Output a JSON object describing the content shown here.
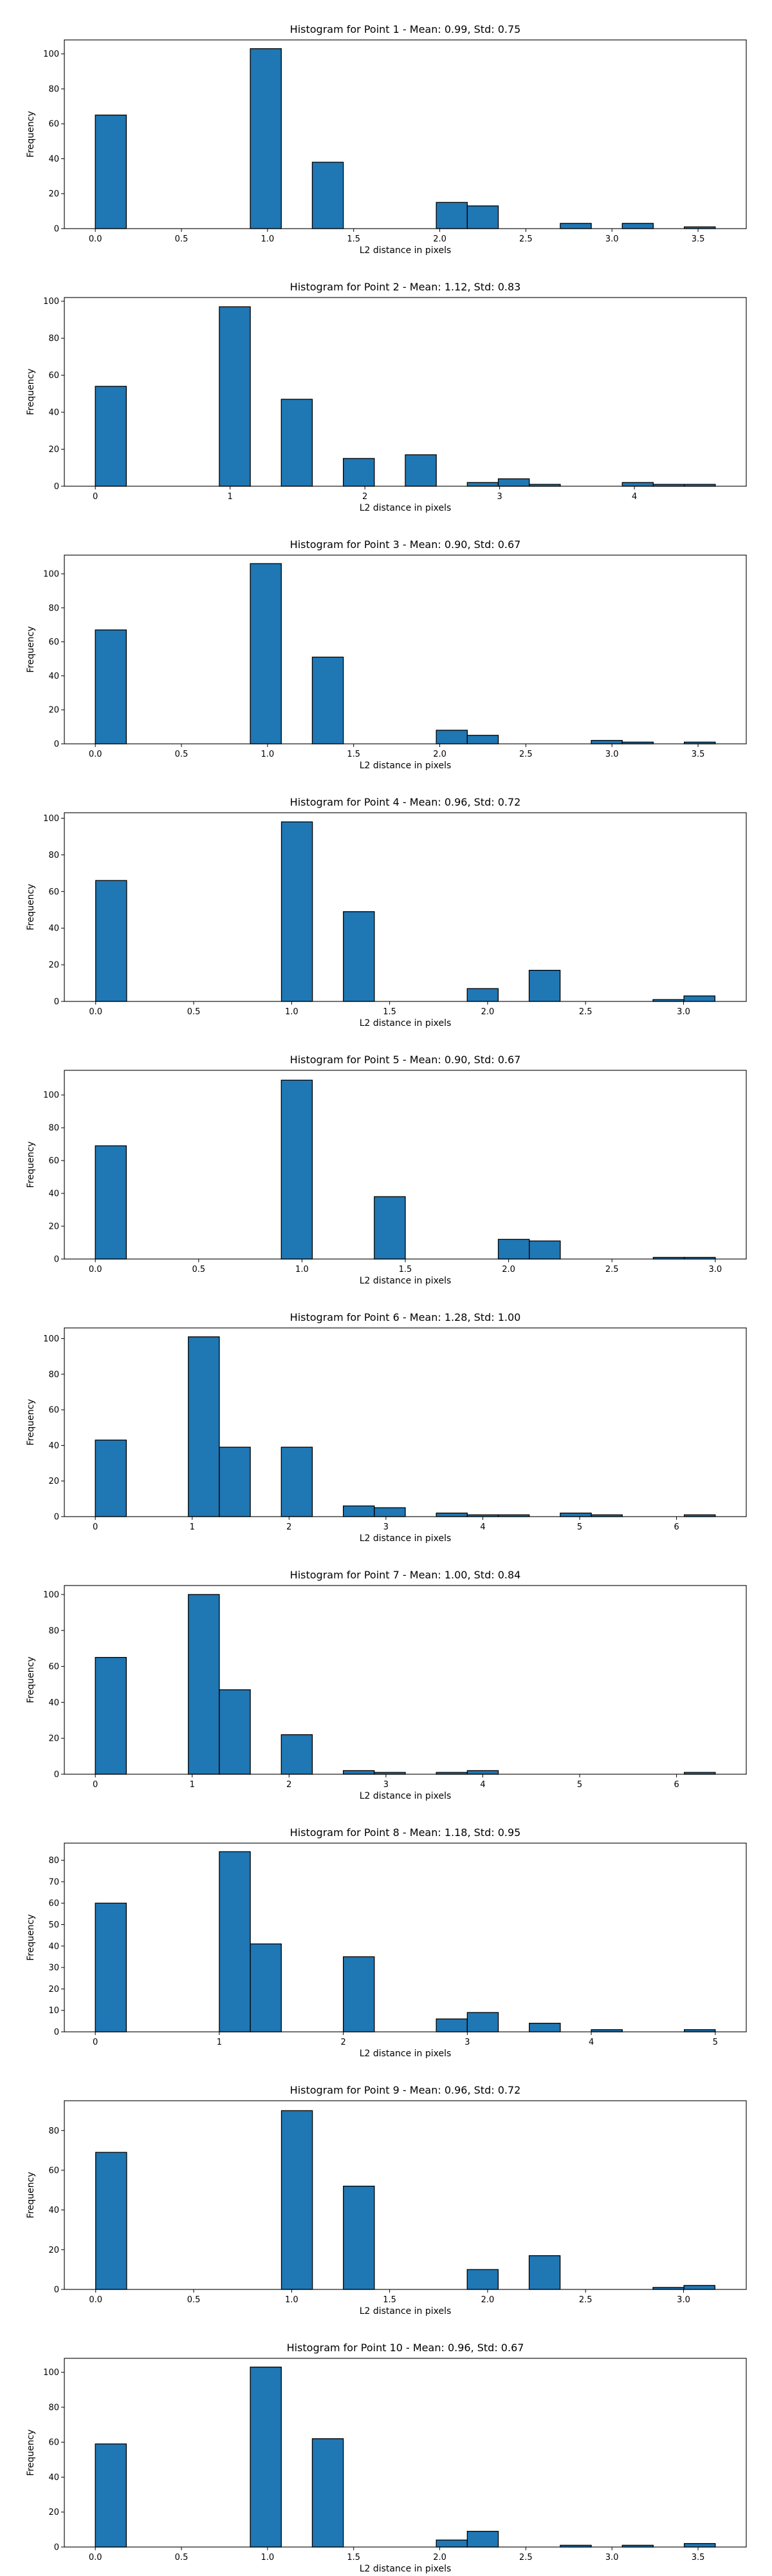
{
  "style": {
    "bar_color": "#1f77b4",
    "edge_color": "#000000",
    "axes_color": "#000000"
  },
  "chart_data": [
    {
      "type": "bar",
      "title": "Histogram for Point 1 - Mean: 0.99, Std: 0.75",
      "xlabel": "L2 distance in pixels",
      "ylabel": "Frequency",
      "xlim": [
        -0.18,
        3.78
      ],
      "ylim": [
        0,
        108
      ],
      "xticks": [
        0.0,
        0.5,
        1.0,
        1.5,
        2.0,
        2.5,
        3.0,
        3.5
      ],
      "xtick_labels": [
        "0.0",
        "0.5",
        "1.0",
        "1.5",
        "2.0",
        "2.5",
        "3.0",
        "3.5"
      ],
      "yticks": [
        0,
        20,
        40,
        60,
        80,
        100
      ],
      "ytick_labels": [
        "0",
        "20",
        "40",
        "60",
        "80",
        "100"
      ],
      "bin_edges": [
        0.0,
        0.18,
        0.36,
        0.54,
        0.72,
        0.9,
        1.08,
        1.26,
        1.44,
        1.62,
        1.8,
        1.98,
        2.16,
        2.34,
        2.52,
        2.7,
        2.88,
        3.06,
        3.24,
        3.42,
        3.6
      ],
      "values": [
        65,
        0,
        0,
        0,
        0,
        103,
        0,
        38,
        0,
        0,
        0,
        15,
        13,
        0,
        0,
        3,
        0,
        3,
        0,
        1
      ]
    },
    {
      "type": "bar",
      "title": "Histogram for Point 2 - Mean: 1.12, Std: 0.83",
      "xlabel": "L2 distance in pixels",
      "ylabel": "Frequency",
      "xlim": [
        -0.23,
        4.83
      ],
      "ylim": [
        0,
        102
      ],
      "xticks": [
        0,
        1,
        2,
        3,
        4
      ],
      "xtick_labels": [
        "0",
        "1",
        "2",
        "3",
        "4"
      ],
      "yticks": [
        0,
        20,
        40,
        60,
        80,
        100
      ],
      "ytick_labels": [
        "0",
        "20",
        "40",
        "60",
        "80",
        "100"
      ],
      "bin_edges": [
        0.0,
        0.23,
        0.46,
        0.69,
        0.92,
        1.15,
        1.38,
        1.61,
        1.84,
        2.07,
        2.3,
        2.53,
        2.76,
        2.99,
        3.22,
        3.45,
        3.68,
        3.91,
        4.14,
        4.37,
        4.6
      ],
      "values": [
        54,
        0,
        0,
        0,
        97,
        0,
        47,
        0,
        15,
        0,
        17,
        0,
        2,
        4,
        1,
        0,
        0,
        2,
        1,
        1
      ]
    },
    {
      "type": "bar",
      "title": "Histogram for Point 3 - Mean: 0.90, Std: 0.67",
      "xlabel": "L2 distance in pixels",
      "ylabel": "Frequency",
      "xlim": [
        -0.18,
        3.78
      ],
      "ylim": [
        0,
        111
      ],
      "xticks": [
        0.0,
        0.5,
        1.0,
        1.5,
        2.0,
        2.5,
        3.0,
        3.5
      ],
      "xtick_labels": [
        "0.0",
        "0.5",
        "1.0",
        "1.5",
        "2.0",
        "2.5",
        "3.0",
        "3.5"
      ],
      "yticks": [
        0,
        20,
        40,
        60,
        80,
        100
      ],
      "ytick_labels": [
        "0",
        "20",
        "40",
        "60",
        "80",
        "100"
      ],
      "bin_edges": [
        0.0,
        0.18,
        0.36,
        0.54,
        0.72,
        0.9,
        1.08,
        1.26,
        1.44,
        1.62,
        1.8,
        1.98,
        2.16,
        2.34,
        2.52,
        2.7,
        2.88,
        3.06,
        3.24,
        3.42,
        3.6
      ],
      "values": [
        67,
        0,
        0,
        0,
        0,
        106,
        0,
        51,
        0,
        0,
        0,
        8,
        5,
        0,
        0,
        0,
        2,
        1,
        0,
        1
      ]
    },
    {
      "type": "bar",
      "title": "Histogram for Point 4 - Mean: 0.96, Std: 0.72",
      "xlabel": "L2 distance in pixels",
      "ylabel": "Frequency",
      "xlim": [
        -0.16,
        3.32
      ],
      "ylim": [
        0,
        103
      ],
      "xticks": [
        0.0,
        0.5,
        1.0,
        1.5,
        2.0,
        2.5,
        3.0
      ],
      "xtick_labels": [
        "0.0",
        "0.5",
        "1.0",
        "1.5",
        "2.0",
        "2.5",
        "3.0"
      ],
      "yticks": [
        0,
        20,
        40,
        60,
        80,
        100
      ],
      "ytick_labels": [
        "0",
        "20",
        "40",
        "60",
        "80",
        "100"
      ],
      "bin_edges": [
        0.0,
        0.158,
        0.316,
        0.474,
        0.632,
        0.79,
        0.948,
        1.106,
        1.264,
        1.422,
        1.58,
        1.738,
        1.896,
        2.054,
        2.212,
        2.37,
        2.528,
        2.686,
        2.844,
        3.002,
        3.16
      ],
      "values": [
        66,
        0,
        0,
        0,
        0,
        0,
        98,
        0,
        49,
        0,
        0,
        0,
        7,
        0,
        17,
        0,
        0,
        0,
        1,
        3
      ]
    },
    {
      "type": "bar",
      "title": "Histogram for Point 5 - Mean: 0.90, Std: 0.67",
      "xlabel": "L2 distance in pixels",
      "ylabel": "Frequency",
      "xlim": [
        -0.15,
        3.15
      ],
      "ylim": [
        0,
        115
      ],
      "xticks": [
        0.0,
        0.5,
        1.0,
        1.5,
        2.0,
        2.5,
        3.0
      ],
      "xtick_labels": [
        "0.0",
        "0.5",
        "1.0",
        "1.5",
        "2.0",
        "2.5",
        "3.0"
      ],
      "yticks": [
        0,
        20,
        40,
        60,
        80,
        100
      ],
      "ytick_labels": [
        "0",
        "20",
        "40",
        "60",
        "80",
        "100"
      ],
      "bin_edges": [
        0.0,
        0.15,
        0.3,
        0.45,
        0.6,
        0.75,
        0.9,
        1.05,
        1.2,
        1.35,
        1.5,
        1.65,
        1.8,
        1.95,
        2.1,
        2.25,
        2.4,
        2.55,
        2.7,
        2.85,
        3.0
      ],
      "values": [
        69,
        0,
        0,
        0,
        0,
        0,
        109,
        0,
        0,
        38,
        0,
        0,
        0,
        12,
        11,
        0,
        0,
        0,
        1,
        1
      ]
    },
    {
      "type": "bar",
      "title": "Histogram for Point 6 - Mean: 1.28, Std: 1.00",
      "xlabel": "L2 distance in pixels",
      "ylabel": "Frequency",
      "xlim": [
        -0.32,
        6.72
      ],
      "ylim": [
        0,
        106
      ],
      "xticks": [
        0,
        1,
        2,
        3,
        4,
        5,
        6
      ],
      "xtick_labels": [
        "0",
        "1",
        "2",
        "3",
        "4",
        "5",
        "6"
      ],
      "yticks": [
        0,
        20,
        40,
        60,
        80,
        100
      ],
      "ytick_labels": [
        "0",
        "20",
        "40",
        "60",
        "80",
        "100"
      ],
      "bin_edges": [
        0.0,
        0.32,
        0.64,
        0.96,
        1.28,
        1.6,
        1.92,
        2.24,
        2.56,
        2.88,
        3.2,
        3.52,
        3.84,
        4.16,
        4.48,
        4.8,
        5.12,
        5.44,
        5.76,
        6.08,
        6.4
      ],
      "values": [
        43,
        0,
        0,
        101,
        39,
        0,
        39,
        0,
        6,
        5,
        0,
        2,
        1,
        1,
        0,
        2,
        1,
        0,
        0,
        1
      ]
    },
    {
      "type": "bar",
      "title": "Histogram for Point 7 - Mean: 1.00, Std: 0.84",
      "xlabel": "L2 distance in pixels",
      "ylabel": "Frequency",
      "xlim": [
        -0.32,
        6.72
      ],
      "ylim": [
        0,
        105
      ],
      "xticks": [
        0,
        1,
        2,
        3,
        4,
        5,
        6
      ],
      "xtick_labels": [
        "0",
        "1",
        "2",
        "3",
        "4",
        "5",
        "6"
      ],
      "yticks": [
        0,
        20,
        40,
        60,
        80,
        100
      ],
      "ytick_labels": [
        "0",
        "20",
        "40",
        "60",
        "80",
        "100"
      ],
      "bin_edges": [
        0.0,
        0.32,
        0.64,
        0.96,
        1.28,
        1.6,
        1.92,
        2.24,
        2.56,
        2.88,
        3.2,
        3.52,
        3.84,
        4.16,
        4.48,
        4.8,
        5.12,
        5.44,
        5.76,
        6.08,
        6.4
      ],
      "values": [
        65,
        0,
        0,
        100,
        47,
        0,
        22,
        0,
        2,
        1,
        0,
        1,
        2,
        0,
        0,
        0,
        0,
        0,
        0,
        1
      ]
    },
    {
      "type": "bar",
      "title": "Histogram for Point 8 - Mean: 1.18, Std: 0.95",
      "xlabel": "L2 distance in pixels",
      "ylabel": "Frequency",
      "xlim": [
        -0.25,
        5.25
      ],
      "ylim": [
        0,
        88
      ],
      "xticks": [
        0,
        1,
        2,
        3,
        4,
        5
      ],
      "xtick_labels": [
        "0",
        "1",
        "2",
        "3",
        "4",
        "5"
      ],
      "yticks": [
        0,
        10,
        20,
        30,
        40,
        50,
        60,
        70,
        80
      ],
      "ytick_labels": [
        "0",
        "10",
        "20",
        "30",
        "40",
        "50",
        "60",
        "70",
        "80"
      ],
      "bin_edges": [
        0.0,
        0.25,
        0.5,
        0.75,
        1.0,
        1.25,
        1.5,
        1.75,
        2.0,
        2.25,
        2.5,
        2.75,
        3.0,
        3.25,
        3.5,
        3.75,
        4.0,
        4.25,
        4.5,
        4.75,
        5.0
      ],
      "values": [
        60,
        0,
        0,
        0,
        84,
        41,
        0,
        0,
        35,
        0,
        0,
        6,
        9,
        0,
        4,
        0,
        1,
        0,
        0,
        1
      ]
    },
    {
      "type": "bar",
      "title": "Histogram for Point 9 - Mean: 0.96, Std: 0.72",
      "xlabel": "L2 distance in pixels",
      "ylabel": "Frequency",
      "xlim": [
        -0.16,
        3.32
      ],
      "ylim": [
        0,
        95
      ],
      "xticks": [
        0.0,
        0.5,
        1.0,
        1.5,
        2.0,
        2.5,
        3.0
      ],
      "xtick_labels": [
        "0.0",
        "0.5",
        "1.0",
        "1.5",
        "2.0",
        "2.5",
        "3.0"
      ],
      "yticks": [
        0,
        20,
        40,
        60,
        80
      ],
      "ytick_labels": [
        "0",
        "20",
        "40",
        "60",
        "80"
      ],
      "bin_edges": [
        0.0,
        0.158,
        0.316,
        0.474,
        0.632,
        0.79,
        0.948,
        1.106,
        1.264,
        1.422,
        1.58,
        1.738,
        1.896,
        2.054,
        2.212,
        2.37,
        2.528,
        2.686,
        2.844,
        3.002,
        3.16
      ],
      "values": [
        69,
        0,
        0,
        0,
        0,
        0,
        90,
        0,
        52,
        0,
        0,
        0,
        10,
        0,
        17,
        0,
        0,
        0,
        1,
        2
      ]
    },
    {
      "type": "bar",
      "title": "Histogram for Point 10 - Mean: 0.96, Std: 0.67",
      "xlabel": "L2 distance in pixels",
      "ylabel": "Frequency",
      "xlim": [
        -0.18,
        3.78
      ],
      "ylim": [
        0,
        108
      ],
      "xticks": [
        0.0,
        0.5,
        1.0,
        1.5,
        2.0,
        2.5,
        3.0,
        3.5
      ],
      "xtick_labels": [
        "0.0",
        "0.5",
        "1.0",
        "1.5",
        "2.0",
        "2.5",
        "3.0",
        "3.5"
      ],
      "yticks": [
        0,
        20,
        40,
        60,
        80,
        100
      ],
      "ytick_labels": [
        "0",
        "20",
        "40",
        "60",
        "80",
        "100"
      ],
      "bin_edges": [
        0.0,
        0.18,
        0.36,
        0.54,
        0.72,
        0.9,
        1.08,
        1.26,
        1.44,
        1.62,
        1.8,
        1.98,
        2.16,
        2.34,
        2.52,
        2.7,
        2.88,
        3.06,
        3.24,
        3.42,
        3.6
      ],
      "values": [
        59,
        0,
        0,
        0,
        0,
        103,
        0,
        62,
        0,
        0,
        0,
        4,
        9,
        0,
        0,
        1,
        0,
        1,
        0,
        2
      ]
    }
  ]
}
